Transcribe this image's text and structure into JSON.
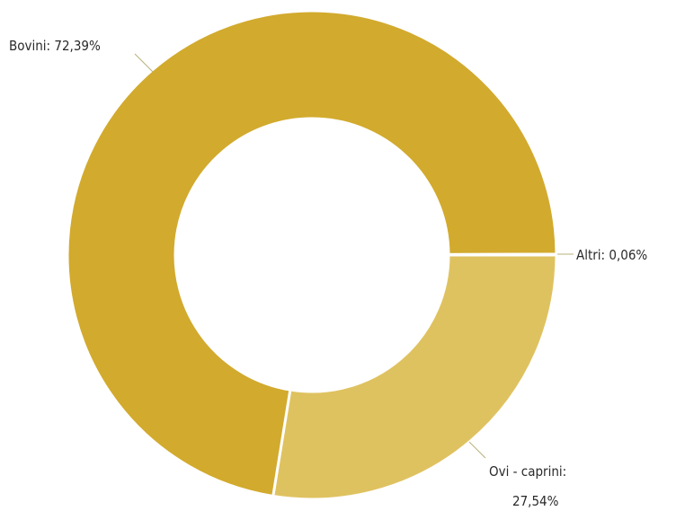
{
  "chart_data": {
    "type": "pie",
    "variant": "donut",
    "title": "",
    "legend": "none",
    "slices": [
      {
        "label": "Bovini",
        "value": 72.39,
        "display": "Bovini: 72,39%",
        "color": "#d2aa2d"
      },
      {
        "label": "Altri",
        "value": 0.06,
        "display": "Altri: 0,06%",
        "color": "#d2aa2d"
      },
      {
        "label": "Ovi - caprini",
        "value": 27.54,
        "display": "Ovi - caprini:",
        "display2": "27,54%",
        "color": "#dfc260"
      }
    ]
  }
}
